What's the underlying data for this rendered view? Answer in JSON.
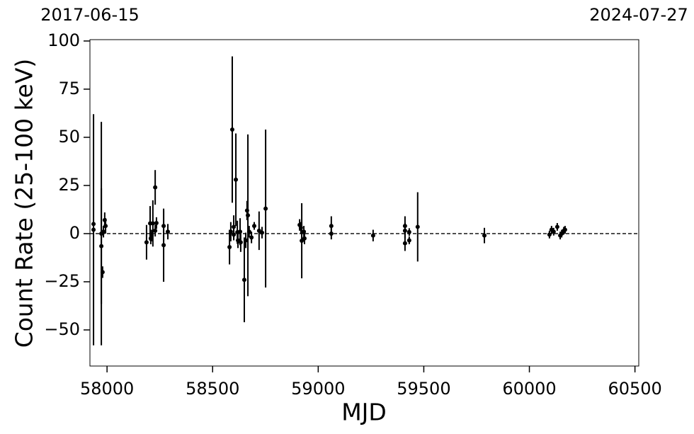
{
  "chart_data": {
    "type": "errorbar",
    "xlabel": "MJD",
    "ylabel": "Count Rate (25-100 keV)",
    "xlim": [
      57919,
      60518
    ],
    "ylim": [
      -68.75,
      100.7
    ],
    "xticks": [
      58000,
      58500,
      59000,
      59500,
      60000,
      60500
    ],
    "yticks": [
      {
        "value": -50,
        "label": "−50"
      },
      {
        "value": -25,
        "label": "−25"
      },
      0,
      25,
      50,
      75,
      100
    ],
    "x2ticks": [
      {
        "value": 57919,
        "label": "2017-06-15"
      },
      {
        "value": 60518,
        "label": "2024-07-27"
      }
    ],
    "hline": 0,
    "color": "#000000",
    "x": [
      57936,
      57936,
      57973,
      57973,
      57979,
      57983,
      57989,
      57993,
      58187,
      58204,
      58207,
      58211,
      58217,
      58228,
      58228,
      58234,
      58268,
      58268,
      58288,
      58580,
      58586,
      58593,
      58600,
      58600,
      58610,
      58617,
      58620,
      58630,
      58633,
      58650,
      58657,
      58663,
      58667,
      58673,
      58684,
      58697,
      58720,
      58734,
      58751,
      58912,
      58918,
      58922,
      58932,
      58935,
      59062,
      59062,
      59260,
      59411,
      59411,
      59411,
      59431,
      59431,
      59471,
      59787,
      60095,
      60105,
      60115,
      60132,
      60146,
      60153,
      60163,
      60169
    ],
    "values": [
      2,
      5,
      0,
      -6.5,
      -20,
      1,
      7,
      4,
      -4.5,
      5.3,
      -2.5,
      -1,
      5.3,
      1.5,
      24,
      5.5,
      4,
      -6,
      1,
      -7,
      1,
      54,
      3.5,
      -0.5,
      28,
      0.7,
      -3.5,
      1,
      -4.5,
      -24,
      -3.5,
      12,
      9.5,
      1,
      -2,
      4,
      1.5,
      0.5,
      13,
      4.5,
      3,
      -3.7,
      1,
      -2.5,
      4,
      0,
      -1,
      4,
      1.5,
      -5,
      0.8,
      -3.5,
      3.5,
      -1,
      -0.5,
      2,
      1,
      3.5,
      -1,
      0,
      1.5,
      2
    ],
    "errors": [
      60,
      1,
      58,
      30,
      3,
      3,
      4,
      4,
      9,
      9,
      3,
      3,
      12,
      3,
      9,
      3,
      8,
      19,
      4,
      9,
      5,
      38,
      6,
      3,
      24,
      6,
      4,
      7,
      5,
      22,
      4,
      5,
      42,
      3,
      3,
      2,
      10,
      3,
      41,
      3,
      3,
      19.5,
      3,
      3,
      5,
      3,
      3,
      5,
      4,
      4,
      2,
      2,
      18,
      4,
      2,
      2,
      2,
      2,
      2,
      2,
      2,
      2
    ]
  }
}
